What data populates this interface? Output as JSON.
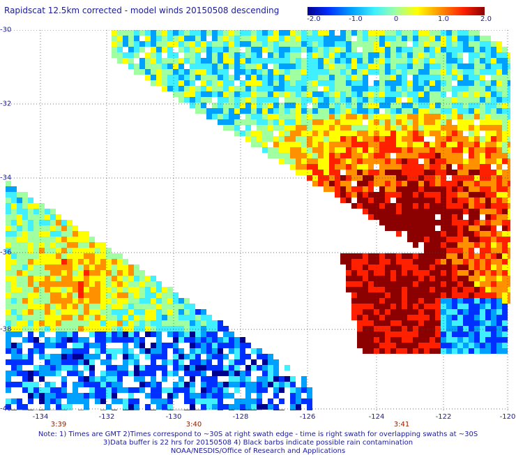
{
  "title": "Rapidscat 12.5km corrected - model winds 20150508 descending",
  "colorbar": {
    "ticks": [
      "-2.0",
      "-1.0",
      "0",
      "1.0",
      "2.0"
    ],
    "colors": [
      "#00008f",
      "#0030ff",
      "#00a0ff",
      "#40f0ff",
      "#a0ffa0",
      "#ffff00",
      "#ff9000",
      "#ff2000",
      "#8b0000"
    ]
  },
  "y_axis": {
    "ticks": [
      "-30",
      "-32",
      "-34",
      "-36",
      "-38",
      "-40"
    ]
  },
  "x_axis": {
    "ticks": [
      "-134",
      "-132",
      "-130",
      "-128",
      "-126",
      "-124",
      "-122",
      "-120"
    ]
  },
  "swath_times": [
    "3:39",
    "3:40",
    "3:41"
  ],
  "notes": [
    "Note: 1) Times are GMT 2)Times correspond to ~30S at right swath edge - time is right swath for overlapping swaths at ~30S",
    "3)Data buffer is 22 hrs for 20150508 4) Black barbs indicate possible rain contamination",
    "NOAA/NESDIS/Office of Research and Applications"
  ]
}
